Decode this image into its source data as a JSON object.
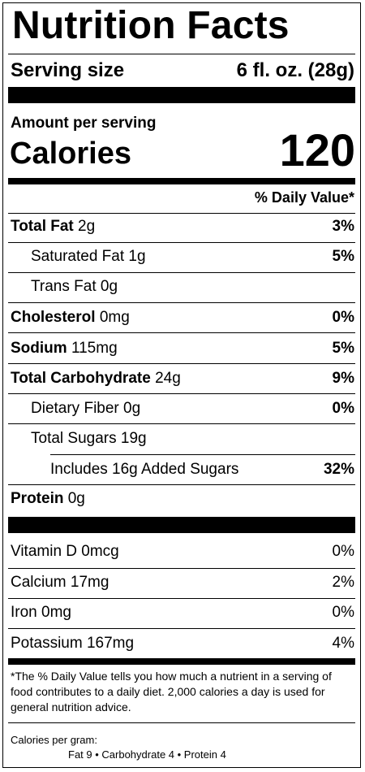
{
  "title": "Nutrition Facts",
  "serving": {
    "label": "Serving size",
    "value": "6 fl. oz. (28g)"
  },
  "amount_per_serving": "Amount per serving",
  "calories": {
    "label": "Calories",
    "value": "120"
  },
  "dv_header": "% Daily Value*",
  "nutrients": {
    "total_fat": {
      "label": "Total Fat",
      "amount": "2g",
      "dv": "3%"
    },
    "saturated_fat": {
      "label": "Saturated Fat",
      "amount": "1g",
      "dv": "5%"
    },
    "trans_fat": {
      "label": "Trans Fat",
      "amount": "0g"
    },
    "cholesterol": {
      "label": "Cholesterol",
      "amount": "0mg",
      "dv": "0%"
    },
    "sodium": {
      "label": "Sodium",
      "amount": "115mg",
      "dv": "5%"
    },
    "total_carb": {
      "label": "Total Carbohydrate",
      "amount": "24g",
      "dv": "9%"
    },
    "dietary_fiber": {
      "label": "Dietary Fiber",
      "amount": "0g",
      "dv": "0%"
    },
    "total_sugars": {
      "label": "Total Sugars",
      "amount": "19g"
    },
    "added_sugars": {
      "label": "Includes 16g Added Sugars",
      "dv": "32%"
    },
    "protein": {
      "label": "Protein",
      "amount": "0g"
    }
  },
  "micros": {
    "vitamin_d": {
      "label": "Vitamin D 0mcg",
      "dv": "0%"
    },
    "calcium": {
      "label": "Calcium 17mg",
      "dv": "2%"
    },
    "iron": {
      "label": "Iron 0mg",
      "dv": "0%"
    },
    "potassium": {
      "label": "Potassium 167mg",
      "dv": "4%"
    }
  },
  "footnote": "*The % Daily Value tells you how much a nutrient in a serving of food contributes to a daily diet. 2,000 calories a day is used for general nutrition advice.",
  "calories_per_gram": {
    "label": "Calories per gram:",
    "values": "Fat 9  •  Carbohydrate 4  •  Protein 4"
  }
}
